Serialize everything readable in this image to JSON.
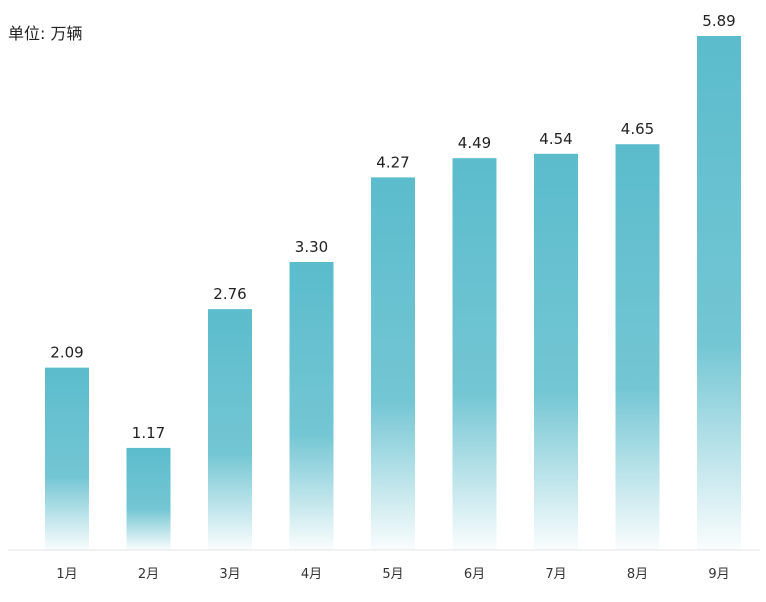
{
  "unit_label": "单位: 万辆",
  "colors": {
    "bar": "#5bbccc",
    "axis": "#e5e5e5"
  },
  "chart_data": {
    "type": "bar",
    "categories": [
      "1月",
      "2月",
      "3月",
      "4月",
      "5月",
      "6月",
      "7月",
      "8月",
      "9月"
    ],
    "values": [
      2.09,
      1.17,
      2.76,
      3.3,
      4.27,
      4.49,
      4.54,
      4.65,
      5.89
    ],
    "value_labels": [
      "2.09",
      "1.17",
      "2.76",
      "3.30",
      "4.27",
      "4.49",
      "4.54",
      "4.65",
      "5.89"
    ],
    "ylabel": "",
    "xlabel": "",
    "title": "",
    "ylim": [
      0,
      5.89
    ],
    "grid": false,
    "legend": "none"
  }
}
